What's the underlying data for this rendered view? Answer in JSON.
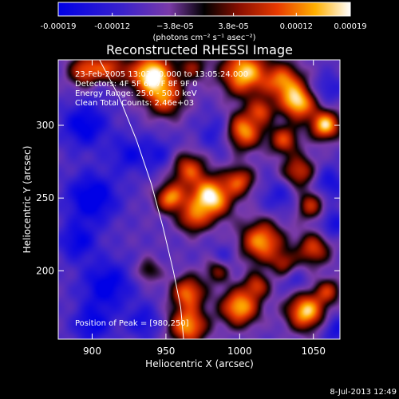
{
  "chart_data": {
    "type": "heatmap",
    "title": "Reconstructed RHESSI Image",
    "xlabel": "Heliocentric X (arcsec)",
    "ylabel": "Heliocentric Y (arcsec)",
    "xlim": [
      877,
      1068
    ],
    "ylim": [
      153,
      345
    ],
    "x_ticks": [
      900,
      950,
      1000,
      1050
    ],
    "y_ticks": [
      200,
      250,
      300
    ],
    "colorbar": {
      "range": [
        -0.00019,
        0.00019
      ],
      "tick_labels": [
        "-0.00019",
        "-0.00012",
        "−3.8e-05",
        "3.8e-05",
        "0.00012",
        "0.00019"
      ],
      "unit_text": "(photons cm⁻² s⁻¹ asec⁻²)"
    },
    "annotations": [
      "23-Feb-2005 13:03:20.000 to 13:05:24.000",
      "Detectors: 4F 5F 6F 7F 8F 9F 0",
      "Energy Range: 25.0 - 50.0 keV",
      "Clean    Total Counts: 2.46e+03"
    ],
    "peak_label": "Position of Peak = [980,250]",
    "peak": [
      980,
      250
    ],
    "limb": [
      [
        905,
        345
      ],
      [
        918,
        320
      ],
      [
        930,
        290
      ],
      [
        940,
        260
      ],
      [
        948,
        230
      ],
      [
        955,
        200
      ],
      [
        960,
        175
      ],
      [
        962,
        153
      ]
    ],
    "sources": [
      [
        896,
        337,
        0.7,
        8
      ],
      [
        912,
        338,
        0.6,
        8
      ],
      [
        940,
        335,
        1.0,
        10
      ],
      [
        968,
        340,
        0.4,
        7
      ],
      [
        1003,
        336,
        0.9,
        11
      ],
      [
        1030,
        330,
        0.7,
        9
      ],
      [
        950,
        318,
        0.6,
        9
      ],
      [
        1040,
        315,
        0.85,
        8
      ],
      [
        1058,
        300,
        0.9,
        7
      ],
      [
        1002,
        296,
        0.85,
        9
      ],
      [
        1030,
        290,
        0.6,
        7
      ],
      [
        1015,
        310,
        0.5,
        6
      ],
      [
        965,
        270,
        0.6,
        8
      ],
      [
        980,
        250,
        1.0,
        10
      ],
      [
        953,
        250,
        0.75,
        7
      ],
      [
        1000,
        262,
        0.6,
        7
      ],
      [
        968,
        235,
        0.5,
        7
      ],
      [
        1040,
        268,
        0.6,
        8
      ],
      [
        1048,
        245,
        0.55,
        7
      ],
      [
        1015,
        220,
        0.8,
        10
      ],
      [
        1050,
        215,
        0.6,
        8
      ],
      [
        1030,
        205,
        0.4,
        6
      ],
      [
        985,
        200,
        0.4,
        6
      ],
      [
        965,
        185,
        0.7,
        8
      ],
      [
        965,
        162,
        0.8,
        9
      ],
      [
        1000,
        175,
        0.85,
        9
      ],
      [
        1045,
        172,
        0.9,
        9
      ],
      [
        1060,
        186,
        0.5,
        6
      ],
      [
        1012,
        190,
        0.5,
        6
      ],
      [
        938,
        200,
        0.35,
        6
      ]
    ],
    "sinks": [
      [
        895,
        300,
        0.7,
        11
      ],
      [
        900,
        250,
        0.8,
        12
      ],
      [
        890,
        220,
        0.6,
        9
      ],
      [
        910,
        190,
        0.7,
        12
      ],
      [
        900,
        163,
        0.6,
        9
      ],
      [
        935,
        165,
        0.5,
        8
      ],
      [
        925,
        280,
        0.5,
        9
      ],
      [
        945,
        280,
        0.4,
        8
      ],
      [
        987,
        295,
        0.5,
        9
      ],
      [
        1028,
        252,
        0.4,
        9
      ],
      [
        1060,
        260,
        0.5,
        8
      ],
      [
        1063,
        232,
        0.5,
        7
      ],
      [
        1060,
        325,
        0.4,
        7
      ],
      [
        990,
        210,
        0.3,
        6
      ],
      [
        905,
        330,
        0.4,
        8
      ],
      [
        1038,
        192,
        0.3,
        6
      ],
      [
        1065,
        160,
        0.5,
        7
      ]
    ],
    "grid": false,
    "colors": {
      "background": "#000000",
      "text": "#ffffff"
    }
  },
  "footer": {
    "date_stamp": "8-Jul-2013 12:49"
  }
}
